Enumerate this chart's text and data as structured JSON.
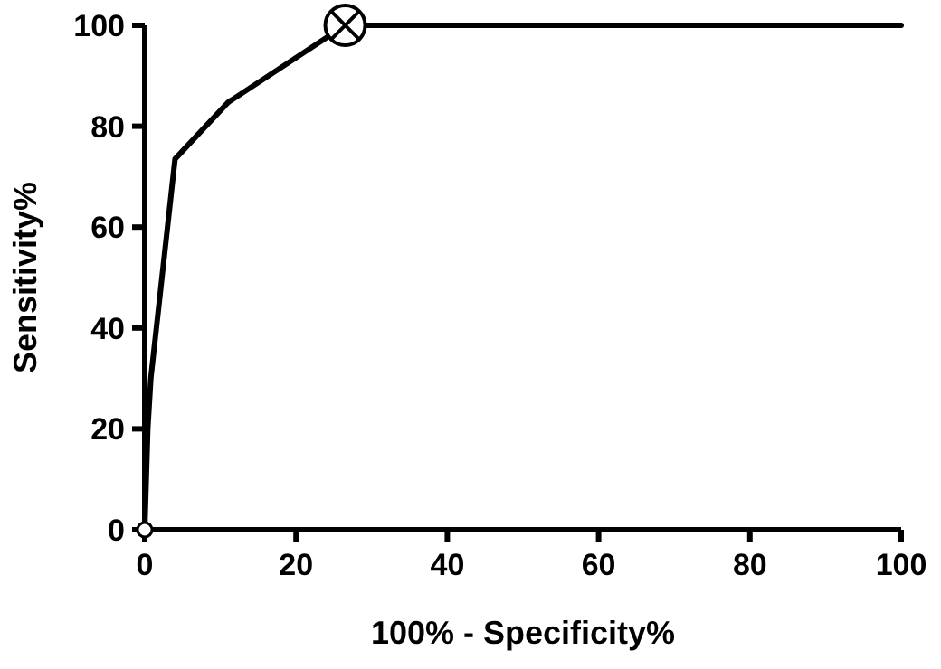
{
  "chart_data": {
    "type": "line",
    "xlabel": "100% - Specificity%",
    "ylabel": "Sensitivity%",
    "xlim": [
      0,
      100
    ],
    "ylim": [
      0,
      100
    ],
    "xticks": [
      0,
      20,
      40,
      60,
      80,
      100
    ],
    "yticks": [
      0,
      20,
      40,
      60,
      80,
      100
    ],
    "grid": false,
    "series": [
      {
        "color": "#000000",
        "marker": "none",
        "line_style": "solid",
        "x": [
          0,
          0.4,
          0.8,
          4,
          11,
          26.5,
          100
        ],
        "values": [
          0,
          20,
          30,
          73.5,
          84.7,
          100,
          100
        ]
      },
      {
        "type": "scatter",
        "color": "#000000",
        "marker": "cross",
        "x": [
          26.5
        ],
        "values": [
          100
        ]
      },
      {
        "type": "scatter",
        "color": "#000000",
        "marker": "circle",
        "x": [
          0
        ],
        "values": [
          0
        ]
      }
    ]
  }
}
